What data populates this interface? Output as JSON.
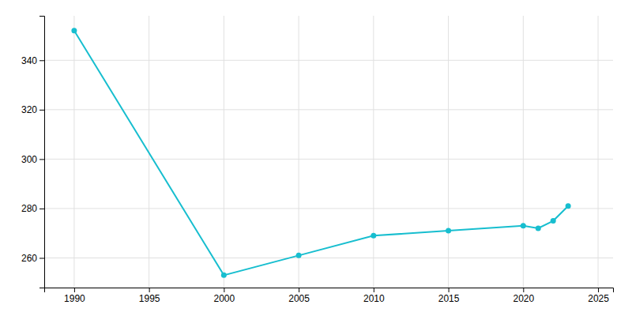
{
  "chart_data": {
    "type": "line",
    "x": [
      1990,
      2000,
      2005,
      2010,
      2015,
      2020,
      2021,
      2022,
      2023
    ],
    "values": [
      352,
      253,
      261,
      269,
      271,
      273,
      272,
      275,
      281
    ],
    "color": "#17becf",
    "marker": "circle",
    "xlim": [
      1988,
      2026
    ],
    "ylim": [
      248,
      358
    ],
    "xticks": [
      1990,
      1995,
      2000,
      2005,
      2010,
      2015,
      2020,
      2025
    ],
    "yticks": [
      260,
      280,
      300,
      320,
      340
    ],
    "grid": true
  }
}
